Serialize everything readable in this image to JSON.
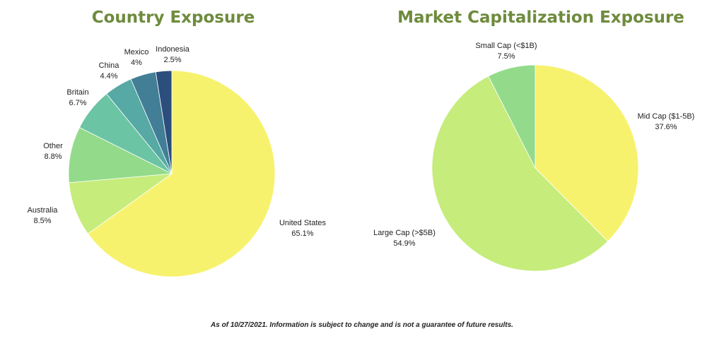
{
  "colors": {
    "title": "#6e8b3d"
  },
  "chart_data": [
    {
      "type": "pie",
      "title": "Country Exposure",
      "slices": [
        {
          "label": "United States",
          "value": 65.1,
          "display": "65.1%",
          "color": "#f7f26e"
        },
        {
          "label": "Australia",
          "value": 8.5,
          "display": "8.5%",
          "color": "#c6ec7b"
        },
        {
          "label": "Other",
          "value": 8.8,
          "display": "8.8%",
          "color": "#93db8a"
        },
        {
          "label": "Britain",
          "value": 6.7,
          "display": "6.7%",
          "color": "#6bc4a3"
        },
        {
          "label": "China",
          "value": 4.4,
          "display": "4.4%",
          "color": "#56a9a4"
        },
        {
          "label": "Mexico",
          "value": 4,
          "display": "4%",
          "color": "#427f97"
        },
        {
          "label": "Indonesia",
          "value": 2.5,
          "display": "2.5%",
          "color": "#2c4e7d"
        }
      ]
    },
    {
      "type": "pie",
      "title": "Market Capitalization Exposure",
      "slices": [
        {
          "label": "Mid Cap ($1-5B)",
          "value": 37.6,
          "display": "37.6%",
          "color": "#f7f26e"
        },
        {
          "label": "Large Cap (>$5B)",
          "value": 54.9,
          "display": "54.9%",
          "color": "#c6ec7b"
        },
        {
          "label": "Small Cap (<$1B)",
          "value": 7.5,
          "display": "7.5%",
          "color": "#93db8a"
        }
      ]
    }
  ],
  "footnote": "As of 10/27/2021. Information is subject to change and is not a guarantee of future results."
}
